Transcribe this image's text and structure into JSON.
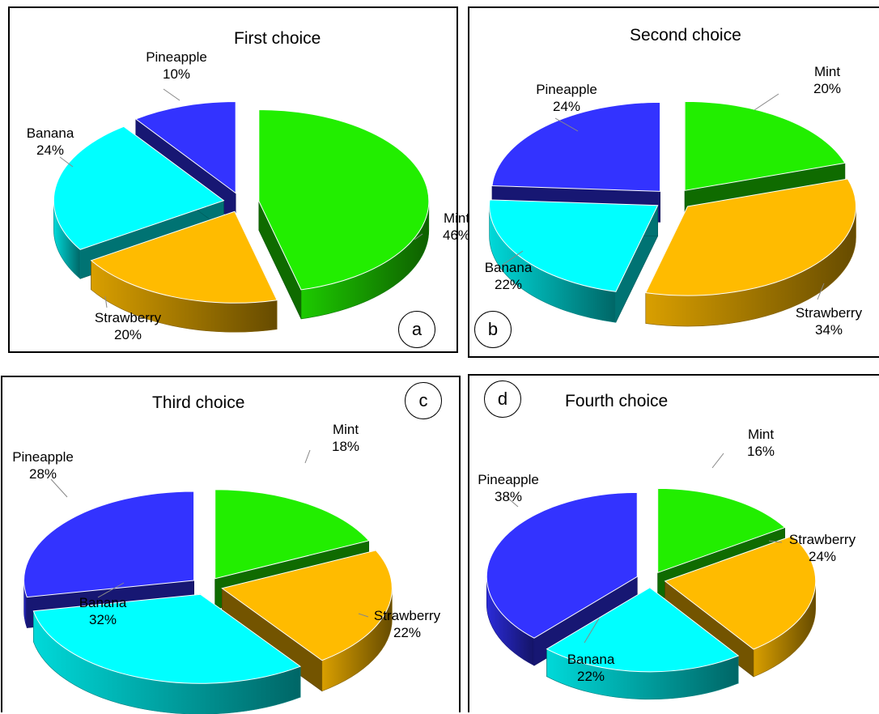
{
  "colors": {
    "Mint": "#22ee00",
    "Strawberry": "#ffbb00",
    "Banana": "#00ffff",
    "Pineapple": "#3333ff"
  },
  "chart_data": [
    {
      "type": "pie",
      "title": "First choice",
      "panel_label": "a",
      "series": [
        {
          "name": "Mint",
          "value": 46,
          "label": "46%"
        },
        {
          "name": "Strawberry",
          "value": 20,
          "label": "20%"
        },
        {
          "name": "Banana",
          "value": 24,
          "label": "24%"
        },
        {
          "name": "Pineapple",
          "value": 10,
          "label": "10%"
        }
      ]
    },
    {
      "type": "pie",
      "title": "Second choice",
      "panel_label": "b",
      "series": [
        {
          "name": "Mint",
          "value": 20,
          "label": "20%"
        },
        {
          "name": "Strawberry",
          "value": 34,
          "label": "34%"
        },
        {
          "name": "Banana",
          "value": 22,
          "label": "22%"
        },
        {
          "name": "Pineapple",
          "value": 24,
          "label": "24%"
        }
      ]
    },
    {
      "type": "pie",
      "title": "Third choice",
      "panel_label": "c",
      "series": [
        {
          "name": "Mint",
          "value": 18,
          "label": "18%"
        },
        {
          "name": "Strawberry",
          "value": 22,
          "label": "22%"
        },
        {
          "name": "Banana",
          "value": 32,
          "label": "32%"
        },
        {
          "name": "Pineapple",
          "value": 28,
          "label": "28%"
        }
      ]
    },
    {
      "type": "pie",
      "title": "Fourth choice",
      "panel_label": "d",
      "series": [
        {
          "name": "Mint",
          "value": 16,
          "label": "16%"
        },
        {
          "name": "Strawberry",
          "value": 24,
          "label": "24%"
        },
        {
          "name": "Banana",
          "value": 22,
          "label": "22%"
        },
        {
          "name": "Pineapple",
          "value": 38,
          "label": "38%"
        }
      ]
    }
  ]
}
